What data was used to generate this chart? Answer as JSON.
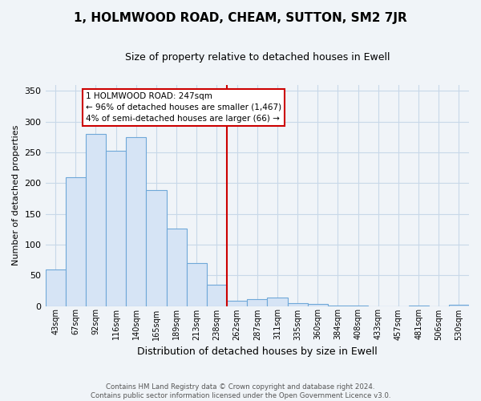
{
  "title": "1, HOLMWOOD ROAD, CHEAM, SUTTON, SM2 7JR",
  "subtitle": "Size of property relative to detached houses in Ewell",
  "xlabel": "Distribution of detached houses by size in Ewell",
  "ylabel": "Number of detached properties",
  "bar_color": "#d6e4f5",
  "bar_edge_color": "#6fa8d8",
  "categories": [
    "43sqm",
    "67sqm",
    "92sqm",
    "116sqm",
    "140sqm",
    "165sqm",
    "189sqm",
    "213sqm",
    "238sqm",
    "262sqm",
    "287sqm",
    "311sqm",
    "335sqm",
    "360sqm",
    "384sqm",
    "408sqm",
    "433sqm",
    "457sqm",
    "481sqm",
    "506sqm",
    "530sqm"
  ],
  "values": [
    60,
    210,
    280,
    252,
    274,
    188,
    126,
    70,
    34,
    9,
    11,
    14,
    5,
    3,
    1,
    1,
    0,
    0,
    1,
    0,
    2
  ],
  "vline_x": 8.5,
  "vline_color": "#cc0000",
  "ylim": [
    0,
    360
  ],
  "yticks": [
    0,
    50,
    100,
    150,
    200,
    250,
    300,
    350
  ],
  "annotation_text": "1 HOLMWOOD ROAD: 247sqm\n← 96% of detached houses are smaller (1,467)\n4% of semi-detached houses are larger (66) →",
  "annotation_box_facecolor": "#ffffff",
  "annotation_box_edgecolor": "#cc0000",
  "footer_text": "Contains HM Land Registry data © Crown copyright and database right 2024.\nContains public sector information licensed under the Open Government Licence v3.0.",
  "grid_color": "#c8d8e8",
  "background_color": "#f0f4f8",
  "plot_bg_color": "#f0f4f8",
  "title_fontsize": 11,
  "subtitle_fontsize": 9
}
